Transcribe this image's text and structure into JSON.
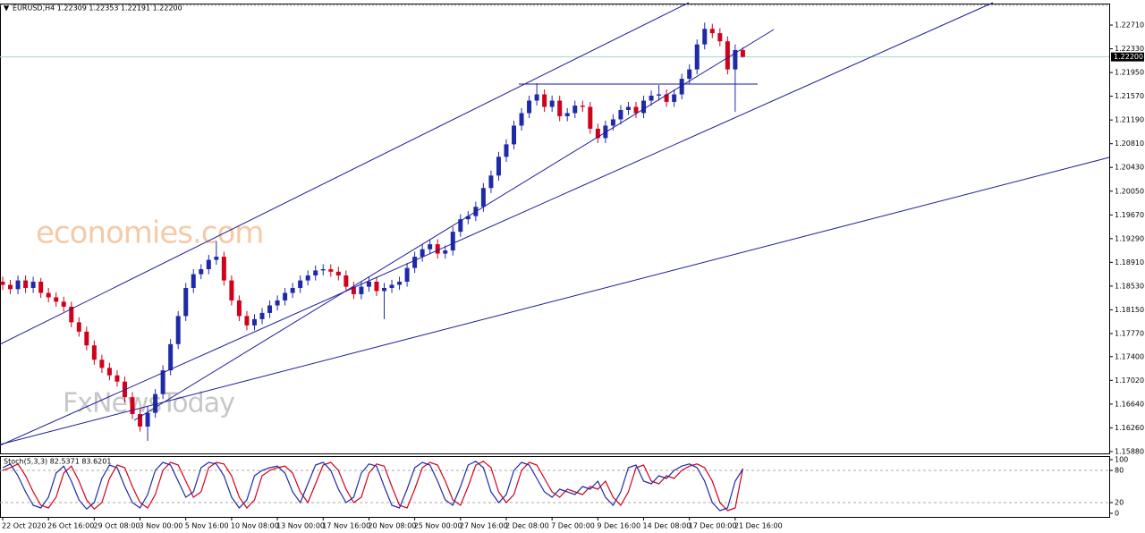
{
  "chart_data": {
    "type": "candlestick",
    "title": "EURUSD,H4  1.22309 1.22353 1.22191 1.22200",
    "watermark": [
      "economies.com",
      "FxNewsToday"
    ],
    "categories": [
      "22 Oct 2020",
      null,
      null,
      null,
      null,
      null,
      "26 Oct 16:00",
      null,
      null,
      null,
      null,
      null,
      "29 Oct 08:00",
      null,
      null,
      null,
      null,
      null,
      "3 Nov 00:00",
      null,
      null,
      null,
      null,
      null,
      "5 Nov 16:00",
      null,
      null,
      null,
      null,
      null,
      "10 Nov 08:00",
      null,
      null,
      null,
      null,
      null,
      "13 Nov 00:00",
      null,
      null,
      null,
      null,
      null,
      "17 Nov 16:00",
      null,
      null,
      null,
      null,
      null,
      "20 Nov 08:00",
      null,
      null,
      null,
      null,
      null,
      "25 Nov 00:00",
      null,
      null,
      null,
      null,
      null,
      "27 Nov 16:00",
      null,
      null,
      null,
      null,
      null,
      "2 Dec 08:00",
      null,
      null,
      null,
      null,
      null,
      "7 Dec 00:00",
      null,
      null,
      null,
      null,
      null,
      "9 Dec 16:00",
      null,
      null,
      null,
      null,
      null,
      "14 Dec 08:00",
      null,
      null,
      null,
      null,
      null,
      "17 Dec 00:00",
      null,
      null,
      null,
      null,
      null,
      "21 Dec 16:00",
      null
    ],
    "ohlc": [
      [
        1.186,
        1.1868,
        1.1847,
        1.1855
      ],
      [
        1.1855,
        1.1863,
        1.184,
        1.1848
      ],
      [
        1.1848,
        1.187,
        1.184,
        1.1862
      ],
      [
        1.1862,
        1.187,
        1.1842,
        1.185
      ],
      [
        1.185,
        1.1868,
        1.1842,
        1.186
      ],
      [
        1.186,
        1.1866,
        1.1834,
        1.1842
      ],
      [
        1.1842,
        1.185,
        1.1827,
        1.1835
      ],
      [
        1.1835,
        1.1843,
        1.182,
        1.1828
      ],
      [
        1.1828,
        1.1836,
        1.1812,
        1.182
      ],
      [
        1.182,
        1.1828,
        1.1787,
        1.1795
      ],
      [
        1.1795,
        1.1803,
        1.1772,
        1.178
      ],
      [
        1.178,
        1.1788,
        1.175,
        1.1758
      ],
      [
        1.1758,
        1.1766,
        1.1727,
        1.1735
      ],
      [
        1.1735,
        1.1743,
        1.1714,
        1.1722
      ],
      [
        1.1722,
        1.173,
        1.1702,
        1.171
      ],
      [
        1.171,
        1.1718,
        1.1692,
        1.17
      ],
      [
        1.17,
        1.1708,
        1.1667,
        1.1675
      ],
      [
        1.1675,
        1.1683,
        1.164,
        1.1648
      ],
      [
        1.1648,
        1.1656,
        1.162,
        1.1628
      ],
      [
        1.1628,
        1.166,
        1.1605,
        1.165
      ],
      [
        1.165,
        1.1688,
        1.1642,
        1.168
      ],
      [
        1.168,
        1.1726,
        1.1672,
        1.1718
      ],
      [
        1.1718,
        1.1768,
        1.171,
        1.176
      ],
      [
        1.176,
        1.1813,
        1.1752,
        1.1805
      ],
      [
        1.1805,
        1.1858,
        1.1797,
        1.185
      ],
      [
        1.185,
        1.188,
        1.1842,
        1.1872
      ],
      [
        1.1872,
        1.1888,
        1.1864,
        1.188
      ],
      [
        1.188,
        1.1903,
        1.1872,
        1.1895
      ],
      [
        1.1895,
        1.1925,
        1.1887,
        1.19
      ],
      [
        1.19,
        1.1908,
        1.1854,
        1.1862
      ],
      [
        1.1862,
        1.187,
        1.1822,
        1.183
      ],
      [
        1.183,
        1.1838,
        1.1797,
        1.1805
      ],
      [
        1.1805,
        1.1813,
        1.1782,
        1.179
      ],
      [
        1.179,
        1.1808,
        1.1782,
        1.18
      ],
      [
        1.18,
        1.1818,
        1.1792,
        1.181
      ],
      [
        1.181,
        1.183,
        1.1802,
        1.1822
      ],
      [
        1.1822,
        1.1838,
        1.1814,
        1.183
      ],
      [
        1.183,
        1.185,
        1.1822,
        1.1842
      ],
      [
        1.1842,
        1.1858,
        1.1834,
        1.185
      ],
      [
        1.185,
        1.187,
        1.1842,
        1.1862
      ],
      [
        1.1862,
        1.1878,
        1.1854,
        1.187
      ],
      [
        1.187,
        1.1886,
        1.1862,
        1.1878
      ],
      [
        1.1878,
        1.1888,
        1.187,
        1.188
      ],
      [
        1.188,
        1.1888,
        1.1868,
        1.1876
      ],
      [
        1.1876,
        1.1884,
        1.1862,
        1.187
      ],
      [
        1.187,
        1.1878,
        1.1844,
        1.1852
      ],
      [
        1.1852,
        1.186,
        1.1832,
        1.184
      ],
      [
        1.184,
        1.186,
        1.1832,
        1.1852
      ],
      [
        1.1852,
        1.1868,
        1.1844,
        1.186
      ],
      [
        1.186,
        1.1868,
        1.1837,
        1.1845
      ],
      [
        1.1845,
        1.1858,
        1.18,
        1.185
      ],
      [
        1.185,
        1.1863,
        1.1842,
        1.1855
      ],
      [
        1.1855,
        1.1868,
        1.1847,
        1.186
      ],
      [
        1.186,
        1.189,
        1.1852,
        1.1882
      ],
      [
        1.1882,
        1.1908,
        1.1874,
        1.19
      ],
      [
        1.19,
        1.192,
        1.1892,
        1.1912
      ],
      [
        1.1912,
        1.1928,
        1.1904,
        1.192
      ],
      [
        1.192,
        1.1928,
        1.1897,
        1.1905
      ],
      [
        1.1905,
        1.1918,
        1.1897,
        1.191
      ],
      [
        1.191,
        1.1948,
        1.1902,
        1.194
      ],
      [
        1.194,
        1.1968,
        1.1932,
        1.196
      ],
      [
        1.196,
        1.1973,
        1.1952,
        1.1965
      ],
      [
        1.1965,
        1.1988,
        1.1957,
        1.198
      ],
      [
        1.198,
        1.2018,
        1.1972,
        1.201
      ],
      [
        1.201,
        1.2038,
        1.2002,
        1.203
      ],
      [
        1.203,
        1.2068,
        1.2022,
        1.206
      ],
      [
        1.206,
        1.2088,
        1.2052,
        1.208
      ],
      [
        1.208,
        1.2118,
        1.2072,
        1.211
      ],
      [
        1.211,
        1.2138,
        1.2102,
        1.213
      ],
      [
        1.213,
        1.2158,
        1.2122,
        1.215
      ],
      [
        1.215,
        1.2178,
        1.2142,
        1.216
      ],
      [
        1.216,
        1.2168,
        1.2132,
        1.214
      ],
      [
        1.214,
        1.2158,
        1.2132,
        1.215
      ],
      [
        1.215,
        1.2158,
        1.2117,
        1.2125
      ],
      [
        1.2125,
        1.2138,
        1.2117,
        1.213
      ],
      [
        1.213,
        1.215,
        1.2122,
        1.2142
      ],
      [
        1.2142,
        1.215,
        1.2132,
        1.214
      ],
      [
        1.214,
        1.2148,
        1.2097,
        1.2105
      ],
      [
        1.2105,
        1.2113,
        1.2082,
        1.209
      ],
      [
        1.209,
        1.2118,
        1.2082,
        1.211
      ],
      [
        1.211,
        1.2128,
        1.2102,
        1.212
      ],
      [
        1.212,
        1.2143,
        1.2112,
        1.2135
      ],
      [
        1.2135,
        1.2148,
        1.2127,
        1.214
      ],
      [
        1.214,
        1.2148,
        1.2122,
        1.213
      ],
      [
        1.213,
        1.2158,
        1.2122,
        1.215
      ],
      [
        1.215,
        1.2166,
        1.2142,
        1.2158
      ],
      [
        1.2158,
        1.2175,
        1.215,
        1.216
      ],
      [
        1.216,
        1.2168,
        1.214,
        1.2148
      ],
      [
        1.2148,
        1.2168,
        1.214,
        1.216
      ],
      [
        1.216,
        1.2193,
        1.2152,
        1.2185
      ],
      [
        1.2185,
        1.2208,
        1.2177,
        1.22
      ],
      [
        1.22,
        1.2248,
        1.2192,
        1.224
      ],
      [
        1.224,
        1.2275,
        1.2232,
        1.2265
      ],
      [
        1.2265,
        1.2273,
        1.225,
        1.2258
      ],
      [
        1.2258,
        1.2266,
        1.2237,
        1.2245
      ],
      [
        1.2245,
        1.2253,
        1.2192,
        1.22
      ],
      [
        1.22,
        1.224,
        1.2132,
        1.2231
      ],
      [
        1.22309,
        1.22353,
        1.22191,
        1.222
      ]
    ],
    "up_color": "#1f2aa8",
    "down_color": "#d0021b",
    "ylim": [
      1.1585,
      1.2304
    ],
    "yticks": [
      {
        "value": 1.2271,
        "label": "1.22710"
      },
      {
        "value": 1.2233,
        "label": "1.22330"
      },
      {
        "value": 1.2195,
        "label": "1.21950"
      },
      {
        "value": 1.2157,
        "label": "1.21570"
      },
      {
        "value": 1.2119,
        "label": "1.21190"
      },
      {
        "value": 1.2081,
        "label": "1.20810"
      },
      {
        "value": 1.2043,
        "label": "1.20430"
      },
      {
        "value": 1.2005,
        "label": "1.20050"
      },
      {
        "value": 1.1967,
        "label": "1.19670"
      },
      {
        "value": 1.1929,
        "label": "1.19290"
      },
      {
        "value": 1.1891,
        "label": "1.18910"
      },
      {
        "value": 1.1853,
        "label": "1.18530"
      },
      {
        "value": 1.1815,
        "label": "1.18150"
      },
      {
        "value": 1.1777,
        "label": "1.17770"
      },
      {
        "value": 1.174,
        "label": "1.17400"
      },
      {
        "value": 1.1702,
        "label": "1.17020"
      },
      {
        "value": 1.1664,
        "label": "1.16640"
      },
      {
        "value": 1.1626,
        "label": "1.16260"
      },
      {
        "value": 1.1588,
        "label": "1.15880"
      }
    ],
    "last_price": {
      "value": 1.222,
      "label": "1.22200"
    },
    "stoch": {
      "label": "Stoch(5,3,3) 82.5371 83.6201",
      "ylim": [
        0,
        100
      ],
      "yticks": [
        100,
        80,
        20,
        0
      ],
      "main": {
        "color": "#1f2aa8",
        "values": [
          85,
          92,
          70,
          40,
          15,
          10,
          30,
          75,
          88,
          60,
          25,
          8,
          20,
          65,
          90,
          85,
          50,
          20,
          10,
          35,
          80,
          95,
          90,
          60,
          30,
          40,
          85,
          95,
          92,
          70,
          30,
          10,
          25,
          70,
          80,
          85,
          88,
          75,
          40,
          20,
          55,
          90,
          95,
          80,
          45,
          20,
          30,
          75,
          92,
          88,
          50,
          15,
          10,
          45,
          85,
          95,
          90,
          60,
          25,
          15,
          50,
          90,
          97,
          85,
          40,
          20,
          35,
          80,
          95,
          90,
          65,
          40,
          30,
          45,
          40,
          35,
          50,
          45,
          60,
          30,
          15,
          40,
          85,
          90,
          60,
          55,
          70,
          65,
          80,
          88,
          92,
          85,
          60,
          20,
          5,
          10,
          60,
          82.5
        ]
      },
      "signal": {
        "color": "#d0021b",
        "values": [
          80,
          85,
          92,
          70,
          40,
          15,
          10,
          30,
          75,
          88,
          60,
          25,
          8,
          20,
          65,
          90,
          85,
          50,
          20,
          10,
          35,
          80,
          95,
          90,
          60,
          30,
          40,
          85,
          95,
          92,
          70,
          30,
          10,
          25,
          70,
          80,
          85,
          88,
          75,
          40,
          20,
          55,
          90,
          95,
          80,
          45,
          20,
          30,
          75,
          92,
          88,
          50,
          15,
          10,
          45,
          85,
          95,
          90,
          60,
          25,
          15,
          50,
          90,
          97,
          85,
          40,
          20,
          35,
          80,
          95,
          90,
          65,
          40,
          30,
          45,
          40,
          35,
          50,
          45,
          60,
          30,
          15,
          40,
          85,
          90,
          60,
          55,
          70,
          65,
          80,
          88,
          92,
          85,
          60,
          20,
          5,
          10,
          83.6
        ]
      }
    }
  }
}
